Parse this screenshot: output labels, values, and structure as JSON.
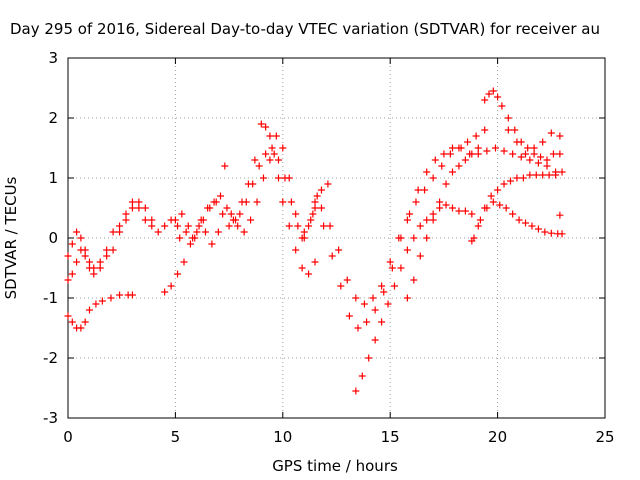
{
  "chart_data": {
    "type": "scatter",
    "title": "Day 295 of 2016, Sidereal Day-to-day VTEC variation (SDTVAR) for receiver au",
    "xlabel": "GPS time / hours",
    "ylabel": "SDTVAR / TECUs",
    "xlim": [
      0,
      25
    ],
    "ylim": [
      -3,
      3
    ],
    "x_ticks": [
      "0",
      "5",
      "10",
      "15",
      "20",
      "25"
    ],
    "y_ticks": [
      "-3",
      "-2",
      "-1",
      "0",
      "1",
      "2",
      "3"
    ],
    "x_tick_values": [
      0,
      5,
      10,
      15,
      20,
      25
    ],
    "y_tick_values": [
      -3,
      -2,
      -1,
      0,
      1,
      2,
      3
    ],
    "grid": true,
    "marker": "+",
    "color": "#ff0000",
    "series": [
      {
        "x": [
          0.0,
          0.2,
          0.4,
          0.6,
          0.8,
          1.0,
          1.2,
          1.5,
          1.8,
          2.1,
          2.4,
          2.7,
          3.0,
          3.3,
          3.6,
          3.9,
          4.2,
          4.5,
          4.8,
          5.1
        ],
        "y": [
          -0.7,
          -0.6,
          -0.4,
          -0.2,
          -0.3,
          -0.5,
          -0.6,
          -0.5,
          -0.3,
          -0.2,
          0.1,
          0.4,
          0.6,
          0.5,
          0.3,
          0.2,
          0.1,
          0.2,
          0.3,
          0.2
        ]
      },
      {
        "x": [
          0.0,
          0.2,
          0.4,
          0.6,
          0.8,
          1.0,
          1.3,
          1.6,
          2.0,
          2.4,
          2.8,
          3.0
        ],
        "y": [
          -1.3,
          -1.4,
          -1.5,
          -1.5,
          -1.4,
          -1.2,
          -1.1,
          -1.05,
          -1.0,
          -0.95,
          -0.95,
          -0.95
        ]
      },
      {
        "x": [
          0.0,
          0.2,
          0.4,
          0.6,
          0.8,
          1.0,
          1.2,
          1.5,
          1.8,
          2.1,
          2.4,
          2.7,
          3.0,
          3.3,
          3.6,
          3.9
        ],
        "y": [
          -0.3,
          -0.1,
          0.1,
          0.0,
          -0.2,
          -0.4,
          -0.5,
          -0.4,
          -0.2,
          0.1,
          0.2,
          0.3,
          0.5,
          0.6,
          0.5,
          0.3
        ]
      },
      {
        "x": [
          4.5,
          4.8,
          5.1,
          5.4,
          5.7,
          6.0,
          6.3,
          6.6,
          6.9,
          7.2,
          7.5,
          7.8,
          8.1,
          8.4,
          8.7,
          9.0,
          9.2,
          9.4,
          9.6,
          9.8,
          10.0,
          10.3,
          10.6,
          10.9,
          11.2,
          11.5
        ],
        "y": [
          -0.9,
          -0.8,
          -0.6,
          -0.4,
          -0.1,
          0.1,
          0.3,
          0.5,
          0.6,
          0.4,
          0.2,
          0.3,
          0.6,
          0.9,
          1.3,
          1.9,
          1.85,
          1.7,
          1.4,
          1.0,
          0.6,
          0.2,
          -0.2,
          -0.5,
          -0.6,
          -0.4
        ]
      },
      {
        "x": [
          5.0,
          5.3,
          5.6,
          5.9,
          6.2,
          6.5,
          6.8,
          7.1,
          7.4,
          7.7,
          8.0,
          8.3,
          8.6,
          8.9,
          9.2,
          9.5,
          9.8,
          10.1,
          10.4,
          10.7,
          11.0,
          11.3,
          11.6
        ],
        "y": [
          0.3,
          0.4,
          0.2,
          0.0,
          0.3,
          0.5,
          0.6,
          0.7,
          0.5,
          0.3,
          0.4,
          0.6,
          0.9,
          1.2,
          1.4,
          1.5,
          1.3,
          1.0,
          0.6,
          0.2,
          0.0,
          0.3,
          0.7
        ]
      },
      {
        "x": [
          5.2,
          5.5,
          5.8,
          6.1,
          6.4,
          6.7,
          7.0,
          7.3,
          7.6,
          7.9,
          8.2,
          8.5,
          8.8,
          9.1,
          9.4,
          9.7,
          10.0,
          10.3,
          10.6,
          10.9,
          11.2,
          11.5,
          11.8,
          12.1
        ],
        "y": [
          0.0,
          0.1,
          0.0,
          0.2,
          0.1,
          -0.1,
          0.1,
          1.2,
          0.4,
          0.2,
          0.1,
          0.3,
          0.6,
          1.0,
          1.3,
          1.7,
          1.5,
          1.0,
          0.4,
          0.0,
          0.2,
          0.5,
          0.8,
          0.9
        ]
      },
      {
        "x": [
          11.0,
          11.4,
          11.8,
          12.2,
          12.6,
          13.0,
          13.4,
          13.8,
          14.2,
          14.6,
          15.0,
          15.4,
          15.8,
          16.2,
          16.6,
          17.0,
          17.4,
          17.8,
          18.2,
          18.6,
          19.0,
          19.4
        ],
        "y": [
          0.1,
          0.4,
          0.5,
          0.2,
          -0.2,
          -0.7,
          -1.0,
          -1.1,
          -1.0,
          -0.8,
          -0.4,
          0.0,
          0.3,
          0.6,
          0.8,
          1.0,
          1.2,
          1.4,
          1.5,
          1.6,
          1.7,
          1.8
        ]
      },
      {
        "x": [
          11.5,
          11.9,
          12.3,
          12.7,
          13.1,
          13.5,
          13.9,
          14.3,
          14.7,
          15.1,
          15.5,
          15.9,
          16.3,
          16.7,
          17.1,
          17.5,
          17.9,
          18.3,
          18.7,
          19.1,
          19.5,
          19.9,
          20.3,
          20.7,
          21.1,
          21.5,
          21.9,
          22.3,
          22.7
        ],
        "y": [
          0.6,
          0.2,
          -0.3,
          -0.8,
          -1.3,
          -1.5,
          -1.4,
          -1.2,
          -0.9,
          -0.5,
          0.0,
          0.4,
          0.8,
          1.1,
          1.3,
          1.4,
          1.5,
          1.5,
          1.4,
          1.4,
          1.45,
          1.5,
          1.45,
          1.4,
          1.35,
          1.3,
          1.25,
          1.2,
          1.1
        ]
      },
      {
        "x": [
          13.4,
          13.7,
          14.0,
          14.3,
          14.6,
          14.9,
          15.2,
          15.5,
          15.8,
          16.1,
          16.4,
          16.7,
          17.0,
          17.3,
          17.6,
          17.9,
          18.2,
          18.5,
          18.8
        ],
        "y": [
          -2.55,
          -2.3,
          -2.0,
          -1.7,
          -1.4,
          -1.1,
          -0.8,
          -0.5,
          -0.2,
          0.0,
          0.2,
          0.3,
          0.4,
          0.5,
          0.55,
          0.5,
          0.45,
          0.45,
          0.4
        ]
      },
      {
        "x": [
          15.8,
          16.1,
          16.4,
          16.7,
          17.0,
          17.3,
          17.6,
          17.9,
          18.2,
          18.5,
          18.8,
          19.1,
          19.4,
          19.6,
          19.8,
          20.0,
          20.2,
          20.5,
          20.8,
          21.1,
          21.4,
          21.7,
          22.0,
          22.3,
          22.6,
          22.9
        ],
        "y": [
          -1.0,
          -0.7,
          -0.3,
          0.0,
          0.3,
          0.6,
          0.9,
          1.1,
          1.2,
          1.3,
          1.4,
          1.5,
          2.3,
          2.4,
          2.45,
          2.35,
          2.2,
          2.0,
          1.8,
          1.6,
          1.5,
          1.4,
          1.35,
          1.3,
          1.4,
          1.4
        ]
      },
      {
        "x": [
          18.8,
          19.1,
          19.4,
          19.7,
          20.0,
          20.3,
          20.6,
          20.9,
          21.2,
          21.5,
          21.8,
          22.1,
          22.4,
          22.7,
          23.0
        ],
        "y": [
          -0.05,
          0.2,
          0.5,
          0.7,
          0.8,
          0.9,
          0.95,
          1.0,
          1.0,
          1.05,
          1.05,
          1.05,
          1.05,
          1.05,
          1.1
        ]
      },
      {
        "x": [
          18.9,
          19.2,
          19.5,
          19.8,
          20.1,
          20.4,
          20.7,
          21.0,
          21.3,
          21.6,
          21.9,
          22.2,
          22.5,
          22.8,
          23.0,
          22.9
        ],
        "y": [
          0.0,
          0.3,
          0.5,
          0.6,
          0.55,
          0.5,
          0.4,
          0.3,
          0.25,
          0.2,
          0.15,
          0.1,
          0.08,
          0.07,
          0.07,
          0.38
        ]
      },
      {
        "x": [
          20.5,
          20.9,
          21.3,
          21.7,
          22.1,
          22.5,
          22.9
        ],
        "y": [
          1.8,
          1.6,
          1.4,
          1.5,
          1.6,
          1.75,
          1.7
        ]
      }
    ]
  }
}
